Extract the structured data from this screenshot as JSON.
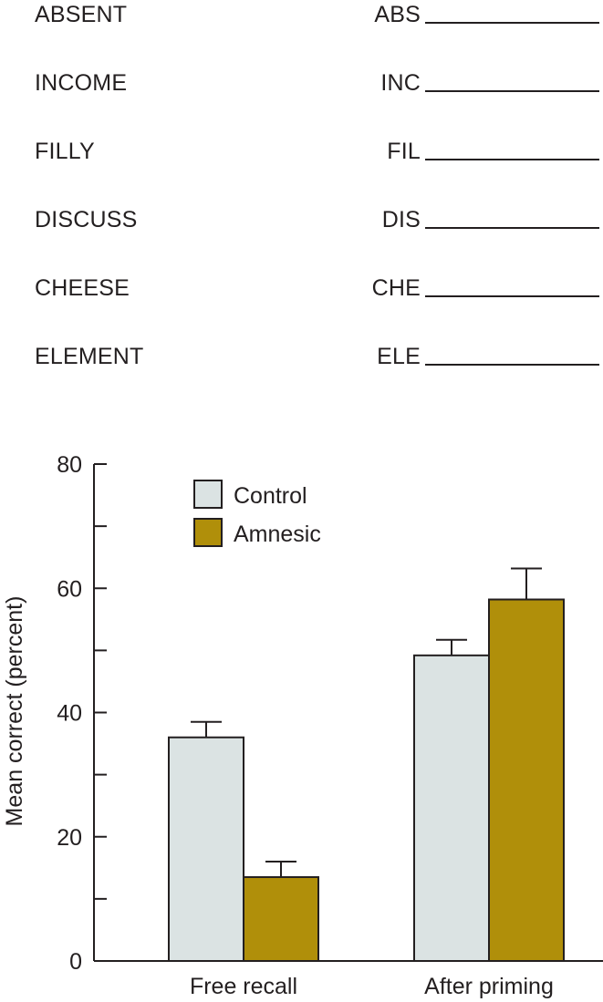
{
  "word_list": [
    {
      "word": "ABSENT",
      "stem": "ABS"
    },
    {
      "word": "INCOME",
      "stem": "INC"
    },
    {
      "word": "FILLY",
      "stem": "FIL"
    },
    {
      "word": "DISCUSS",
      "stem": "DIS"
    },
    {
      "word": "CHEESE",
      "stem": "CHE"
    },
    {
      "word": "ELEMENT",
      "stem": "ELE"
    }
  ],
  "chart_data": {
    "type": "bar",
    "categories": [
      "Free recall",
      "After priming"
    ],
    "series": [
      {
        "name": "Control",
        "values": [
          36,
          49.2
        ],
        "errors": [
          2.5,
          2.5
        ],
        "color": "#dbe3e3"
      },
      {
        "name": "Amnesic",
        "values": [
          13.5,
          58.2
        ],
        "errors": [
          2.5,
          5
        ]
      }
    ],
    "series_colors": [
      "#dbe3e3",
      "#b08f0a"
    ],
    "ylabel": "Mean correct  (percent)",
    "xlabel": "",
    "ylim": [
      0,
      80
    ],
    "yticks": [
      0,
      20,
      40,
      60,
      80
    ],
    "legend_position": "top-left",
    "grid": false
  }
}
